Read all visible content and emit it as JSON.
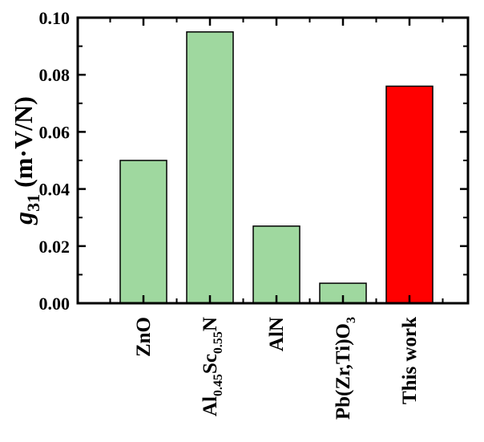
{
  "chart_data": {
    "type": "bar",
    "categories": [
      "ZnO",
      "Al0.45Sc0.55N",
      "AlN",
      "Pb(Zr,Ti)O3",
      "This work"
    ],
    "category_labels": [
      {
        "parts": [
          {
            "t": "ZnO",
            "sub": false
          }
        ]
      },
      {
        "parts": [
          {
            "t": "Al",
            "sub": false
          },
          {
            "t": "0.45",
            "sub": true
          },
          {
            "t": "Sc",
            "sub": false
          },
          {
            "t": "0.55",
            "sub": true
          },
          {
            "t": "N",
            "sub": false
          }
        ]
      },
      {
        "parts": [
          {
            "t": "AlN",
            "sub": false
          }
        ]
      },
      {
        "parts": [
          {
            "t": "Pb(Zr,Ti)O",
            "sub": false
          },
          {
            "t": "3",
            "sub": true
          }
        ]
      },
      {
        "parts": [
          {
            "t": "This work",
            "sub": false
          }
        ]
      }
    ],
    "values": [
      0.05,
      0.095,
      0.027,
      0.007,
      0.076
    ],
    "bar_colors": [
      "#9fd89f",
      "#9fd89f",
      "#9fd89f",
      "#9fd89f",
      "#ff0000"
    ],
    "ylabel": {
      "main": "g",
      "sub": "31",
      "units": " (m·V/N)"
    },
    "xlabel": "",
    "ylim": [
      0,
      0.1
    ],
    "yticks": [
      "0.00",
      "0.02",
      "0.04",
      "0.06",
      "0.08",
      "0.10"
    ],
    "ytick_values": [
      0,
      0.02,
      0.04,
      0.06,
      0.08,
      0.1
    ],
    "grid": false
  }
}
